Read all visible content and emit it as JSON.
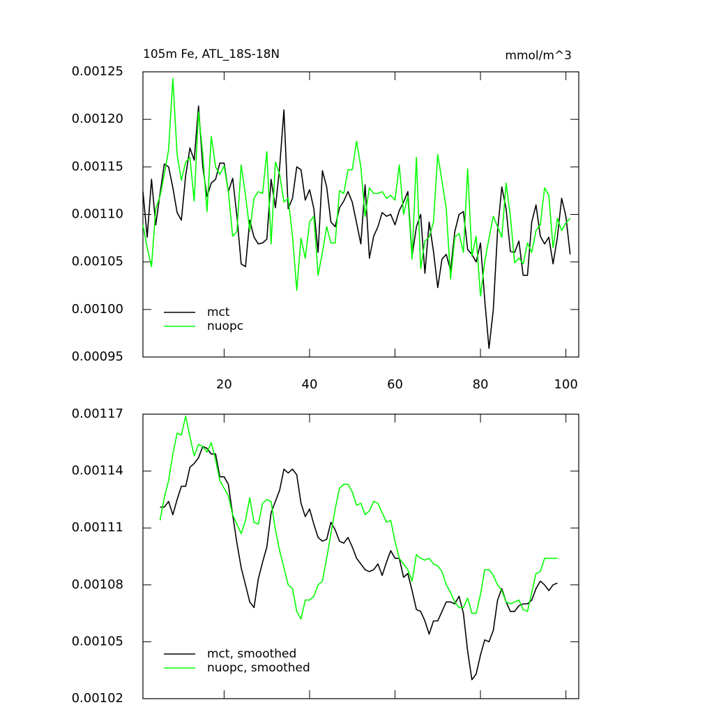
{
  "chart_data": [
    {
      "type": "line",
      "title": "105m Fe, ATL_18S-18N",
      "subtitle": "mmol/m^3",
      "x": [
        1,
        2,
        3,
        4,
        5,
        6,
        7,
        8,
        9,
        10,
        11,
        12,
        13,
        14,
        15,
        16,
        17,
        18,
        19,
        20,
        21,
        22,
        23,
        24,
        25,
        26,
        27,
        28,
        29,
        30,
        31,
        32,
        33,
        34,
        35,
        36,
        37,
        38,
        39,
        40,
        41,
        42,
        43,
        44,
        45,
        46,
        47,
        48,
        49,
        50,
        51,
        52,
        53,
        54,
        55,
        56,
        57,
        58,
        59,
        60,
        61,
        62,
        63,
        64,
        65,
        66,
        67,
        68,
        69,
        70,
        71,
        72,
        73,
        74,
        75,
        76,
        77,
        78,
        79,
        80,
        81,
        82,
        83,
        84,
        85,
        86,
        87,
        88,
        89,
        90,
        91,
        92,
        93,
        94,
        95,
        96,
        97,
        98,
        99,
        100,
        101
      ],
      "xlim": [
        1,
        103
      ],
      "xticks": [
        20,
        40,
        60,
        80,
        100
      ],
      "xtick_labels": true,
      "ylim": [
        0.00095,
        0.00125
      ],
      "yticks": [
        0.00095,
        {
          "value": 0.001,
          "label": "0.00100"
        },
        0.00105,
        {
          "value": 0.0011,
          "label": "0.00110"
        },
        0.00115,
        {
          "value": 0.0012,
          "label": "0.00120"
        },
        0.00125
      ],
      "legend": "lower left",
      "series": [
        {
          "name": "mct",
          "color": "#000000",
          "values": [
            0.001124,
            0.001076,
            0.001137,
            0.001089,
            0.001122,
            0.001153,
            0.00115,
            0.001128,
            0.001102,
            0.001094,
            0.001141,
            0.00117,
            0.001157,
            0.001214,
            0.00115,
            0.001119,
            0.001133,
            0.001137,
            0.001154,
            0.001154,
            0.001124,
            0.001138,
            0.001098,
            0.001048,
            0.001045,
            0.001094,
            0.001076,
            0.001069,
            0.00107,
            0.001074,
            0.001137,
            0.001107,
            0.00115,
            0.00121,
            0.001106,
            0.001117,
            0.00115,
            0.001147,
            0.001115,
            0.001126,
            0.001106,
            0.00106,
            0.001146,
            0.001129,
            0.001092,
            0.001087,
            0.001107,
            0.001114,
            0.001124,
            0.001113,
            0.001091,
            0.001069,
            0.001131,
            0.001054,
            0.001077,
            0.001087,
            0.001102,
            0.001098,
            0.0011,
            0.001089,
            0.001104,
            0.001113,
            0.001124,
            0.001056,
            0.001087,
            0.0011,
            0.001038,
            0.001092,
            0.001061,
            0.001023,
            0.001053,
            0.001058,
            0.001041,
            0.001082,
            0.0011,
            0.001103,
            0.001063,
            0.001058,
            0.00105,
            0.00107,
            0.00101,
            0.000959,
            0.001,
            0.001083,
            0.001129,
            0.001106,
            0.001061,
            0.00106,
            0.001072,
            0.001036,
            0.001036,
            0.001092,
            0.00111,
            0.001077,
            0.001069,
            0.001076,
            0.001048,
            0.001076,
            0.001117,
            0.001098,
            0.001058
          ]
        },
        {
          "name": "nuopc",
          "color": "#00ff00",
          "values": [
            0.001089,
            0.001065,
            0.001045,
            0.001106,
            0.001119,
            0.001142,
            0.001168,
            0.001243,
            0.001163,
            0.001136,
            0.001155,
            0.00116,
            0.001114,
            0.001208,
            0.001163,
            0.001103,
            0.001182,
            0.00115,
            0.001142,
            0.001151,
            0.001124,
            0.001077,
            0.001082,
            0.001152,
            0.00112,
            0.001083,
            0.001117,
            0.001124,
            0.001122,
            0.001166,
            0.001069,
            0.001155,
            0.001142,
            0.001113,
            0.001117,
            0.001077,
            0.00102,
            0.001075,
            0.001054,
            0.001092,
            0.001098,
            0.001036,
            0.00106,
            0.001087,
            0.00107,
            0.00107,
            0.001125,
            0.001122,
            0.001147,
            0.001147,
            0.001177,
            0.00115,
            0.001098,
            0.001128,
            0.001122,
            0.001122,
            0.001124,
            0.001117,
            0.00112,
            0.001115,
            0.001152,
            0.0011,
            0.001119,
            0.001053,
            0.00116,
            0.001043,
            0.001072,
            0.001076,
            0.001092,
            0.001163,
            0.001135,
            0.001106,
            0.001032,
            0.001076,
            0.00108,
            0.00106,
            0.001148,
            0.001056,
            0.001077,
            0.001014,
            0.00105,
            0.001075,
            0.001098,
            0.001087,
            0.001076,
            0.001133,
            0.001098,
            0.001049,
            0.001054,
            0.001048,
            0.00107,
            0.00106,
            0.001083,
            0.001089,
            0.001128,
            0.00112,
            0.001065,
            0.001096,
            0.001083,
            0.001091,
            0.001096
          ]
        }
      ]
    },
    {
      "type": "line",
      "x": [
        1,
        2,
        3,
        4,
        5,
        6,
        7,
        8,
        9,
        10,
        11,
        12,
        13,
        14,
        15,
        16,
        17,
        18,
        19,
        20,
        21,
        22,
        23,
        24,
        25,
        26,
        27,
        28,
        29,
        30,
        31,
        32,
        33,
        34,
        35,
        36,
        37,
        38,
        39,
        40,
        41,
        42,
        43,
        44,
        45,
        46,
        47,
        48,
        49,
        50,
        51,
        52,
        53,
        54,
        55,
        56,
        57,
        58,
        59,
        60,
        61,
        62,
        63,
        64,
        65,
        66,
        67,
        68,
        69,
        70,
        71,
        72,
        73,
        74,
        75,
        76,
        77,
        78,
        79,
        80,
        81,
        82,
        83,
        84,
        85,
        86,
        87,
        88,
        89,
        90,
        91,
        92,
        93,
        94,
        95,
        96,
        97,
        98,
        99,
        100,
        101
      ],
      "xlim": [
        1,
        103
      ],
      "xticks": [
        20,
        40,
        60,
        80,
        100
      ],
      "xtick_labels": false,
      "ylim": [
        0.00102,
        0.00117
      ],
      "yticks": [
        0.00102,
        0.00105,
        0.00108,
        0.00111,
        0.00114,
        0.00117
      ],
      "legend": "lower left",
      "series": [
        {
          "name": "mct, smoothed",
          "color": "#000000",
          "values": [
            null,
            null,
            null,
            null,
            0.001121,
            0.001121,
            0.001124,
            0.001117,
            0.001125,
            0.001132,
            0.001132,
            0.001142,
            0.001144,
            0.001147,
            0.001153,
            0.001152,
            0.001149,
            0.001149,
            0.001137,
            0.001137,
            0.001133,
            0.001117,
            0.001102,
            0.001089,
            0.00108,
            0.001071,
            0.001068,
            0.001083,
            0.001092,
            0.0011,
            0.001118,
            0.001124,
            0.00113,
            0.001141,
            0.001139,
            0.001141,
            0.001138,
            0.001123,
            0.001116,
            0.00112,
            0.001112,
            0.001105,
            0.001103,
            0.001104,
            0.001113,
            0.001109,
            0.001103,
            0.001102,
            0.001105,
            0.0011,
            0.001094,
            0.001091,
            0.001088,
            0.001087,
            0.001088,
            0.001091,
            0.001085,
            0.001092,
            0.001098,
            0.001094,
            0.001094,
            0.001084,
            0.001086,
            0.001077,
            0.001067,
            0.001066,
            0.001061,
            0.001054,
            0.001061,
            0.001061,
            0.001066,
            0.001071,
            0.001071,
            0.00107,
            0.001074,
            0.001065,
            0.001045,
            0.00103,
            0.001033,
            0.001043,
            0.001051,
            0.00105,
            0.001056,
            0.001072,
            0.001078,
            0.001071,
            0.001066,
            0.001066,
            0.001069,
            0.00107,
            0.00107,
            0.001072,
            0.001078,
            0.001082,
            0.00108,
            0.001077,
            0.00108,
            0.001081,
            null,
            null,
            null
          ]
        },
        {
          "name": "nuopc, smoothed",
          "color": "#00ff00",
          "values": [
            null,
            null,
            null,
            null,
            0.001114,
            0.001126,
            0.001135,
            0.001149,
            0.00116,
            0.001159,
            0.001169,
            0.001158,
            0.001148,
            0.001154,
            0.001153,
            0.00115,
            0.001155,
            0.001146,
            0.001135,
            0.001131,
            0.001127,
            0.001117,
            0.001112,
            0.001107,
            0.001114,
            0.001126,
            0.001113,
            0.001112,
            0.001123,
            0.001125,
            0.001124,
            0.001109,
            0.001098,
            0.001089,
            0.00108,
            0.001078,
            0.001066,
            0.001062,
            0.001072,
            0.001072,
            0.001074,
            0.00108,
            0.001082,
            0.001094,
            0.001107,
            0.00112,
            0.001131,
            0.001133,
            0.001133,
            0.001129,
            0.001122,
            0.001123,
            0.001117,
            0.001119,
            0.001124,
            0.001123,
            0.001118,
            0.001113,
            0.001114,
            0.001103,
            0.001094,
            0.001091,
            0.001088,
            0.001082,
            0.001096,
            0.001094,
            0.001093,
            0.001094,
            0.001091,
            0.00109,
            0.001087,
            0.00108,
            0.001076,
            0.001071,
            0.001068,
            0.001068,
            0.001073,
            0.001065,
            0.001065,
            0.001075,
            0.001088,
            0.001088,
            0.001085,
            0.00108,
            0.001077,
            0.001071,
            0.00107,
            0.001071,
            0.001072,
            0.001067,
            0.001066,
            0.001076,
            0.001086,
            0.001087,
            0.001094,
            0.001094,
            0.001094,
            0.001094,
            null,
            null,
            null
          ]
        }
      ]
    }
  ]
}
